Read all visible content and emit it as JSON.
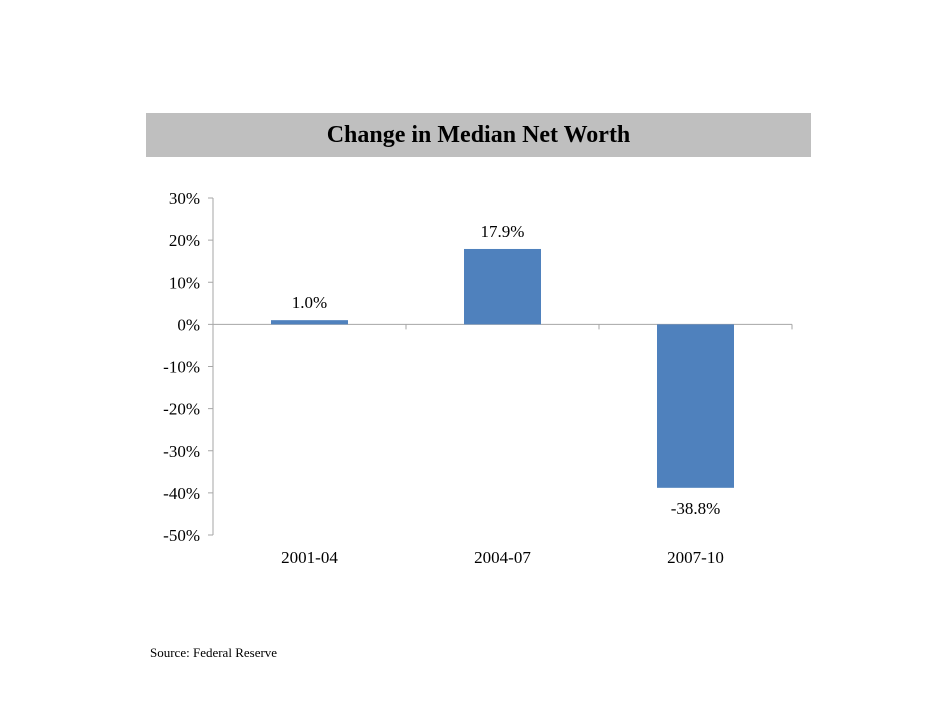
{
  "chart_data": {
    "type": "bar",
    "title": "Change in Median Net Worth",
    "categories": [
      "2001-04",
      "2004-07",
      "2007-10"
    ],
    "values": [
      1.0,
      17.9,
      -38.8
    ],
    "data_labels": [
      "1.0%",
      "17.9%",
      "-38.8%"
    ],
    "yticks": [
      30,
      20,
      10,
      0,
      -10,
      -20,
      -30,
      -40,
      -50
    ],
    "ytick_labels": [
      "30%",
      "20%",
      "10%",
      "0%",
      "-10%",
      "-20%",
      "-30%",
      "-40%",
      "-50%"
    ],
    "ylim": [
      -50,
      30
    ],
    "grid": false,
    "legend": "none",
    "bar_color": "#4f81bd",
    "xlabel": "",
    "ylabel": ""
  },
  "source": "Source: Federal Reserve"
}
